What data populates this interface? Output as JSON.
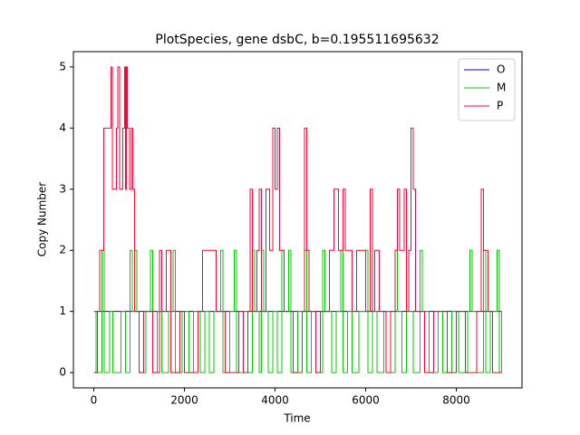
{
  "chart_data": {
    "type": "line",
    "drawstyle": "steps-post",
    "title": "PlotSpecies, gene dsbC, b=0.195511695632",
    "x_label": "Time",
    "y_label": "Copy Number",
    "xlim": [
      -450,
      9450
    ],
    "ylim": [
      -0.25,
      5.25
    ],
    "xticks": [
      0,
      2000,
      4000,
      6000,
      8000
    ],
    "yticks": [
      0,
      1,
      2,
      3,
      4,
      5
    ],
    "legend": "upper right",
    "series": [
      {
        "name": "O",
        "color": "#0000ff",
        "x": [
          0,
          9000
        ],
        "values": [
          1,
          1
        ]
      },
      {
        "name": "M",
        "color": "#00cc00",
        "x": [
          0,
          50,
          180,
          230,
          350,
          420,
          600,
          700,
          800,
          850,
          900,
          950,
          1000,
          1150,
          1250,
          1300,
          1400,
          1500,
          1650,
          1750,
          1800,
          1950,
          2100,
          2200,
          2350,
          2450,
          2550,
          2650,
          2800,
          2850,
          3000,
          3100,
          3150,
          3300,
          3400,
          3500,
          3550,
          3650,
          3700,
          3750,
          3850,
          3950,
          4050,
          4150,
          4200,
          4300,
          4350,
          4500,
          4650,
          4700,
          4800,
          4900,
          5050,
          5100,
          5250,
          5350,
          5450,
          5500,
          5600,
          5700,
          5850,
          6000,
          6050,
          6150,
          6250,
          6400,
          6550,
          6650,
          6700,
          6800,
          6900,
          7050,
          7200,
          7250,
          7400,
          7600,
          7700,
          7900,
          8050,
          8250,
          8300,
          8350,
          8450,
          8600,
          8650,
          8750,
          8900,
          8950,
          9000
        ],
        "values": [
          1,
          0,
          2,
          0,
          1,
          0,
          1,
          0,
          2,
          1,
          2,
          1,
          0,
          1,
          2,
          0,
          1,
          0,
          1,
          2,
          0,
          1,
          0,
          1,
          0,
          1,
          0,
          1,
          2,
          0,
          1,
          2,
          0,
          1,
          0,
          2,
          1,
          0,
          2,
          1,
          0,
          1,
          0,
          2,
          1,
          2,
          0,
          1,
          2,
          0,
          1,
          0,
          2,
          1,
          0,
          1,
          2,
          0,
          1,
          0,
          1,
          2,
          0,
          1,
          0,
          1,
          0,
          2,
          1,
          0,
          1,
          0,
          2,
          1,
          0,
          1,
          0,
          1,
          0,
          1,
          2,
          1,
          0,
          2,
          0,
          1,
          2,
          0,
          1
        ]
      },
      {
        "name": "P",
        "color": "#ff0033",
        "x": [
          0,
          80,
          130,
          220,
          380,
          410,
          500,
          530,
          570,
          640,
          680,
          700,
          720,
          740,
          790,
          830,
          860,
          900,
          1000,
          1100,
          1300,
          1450,
          1500,
          1600,
          1700,
          1900,
          2000,
          2300,
          2400,
          2700,
          2900,
          3200,
          3300,
          3400,
          3450,
          3500,
          3600,
          3650,
          3700,
          3800,
          3880,
          3950,
          4000,
          4050,
          4100,
          4200,
          4400,
          4600,
          4650,
          4700,
          4750,
          4900,
          5000,
          5200,
          5300,
          5400,
          5500,
          5550,
          5700,
          5800,
          6000,
          6100,
          6150,
          6200,
          6300,
          6450,
          6550,
          6650,
          6700,
          6750,
          6850,
          6900,
          6950,
          7000,
          7050,
          7100,
          7300,
          7500,
          7800,
          8000,
          8200,
          8450,
          8550,
          8600,
          8700,
          8800,
          9000
        ],
        "values": [
          0,
          1,
          2,
          4,
          5,
          3,
          4,
          5,
          3,
          4,
          5,
          3,
          5,
          4,
          3,
          4,
          3,
          1,
          0,
          1,
          0,
          2,
          1,
          2,
          0,
          1,
          0,
          1,
          2,
          1,
          0,
          1,
          0,
          1,
          3,
          1,
          2,
          3,
          1,
          3,
          2,
          4,
          3,
          4,
          2,
          1,
          0,
          1,
          4,
          2,
          1,
          0,
          1,
          2,
          3,
          2,
          3,
          2,
          1,
          2,
          1,
          3,
          1,
          2,
          1,
          0,
          1,
          2,
          3,
          2,
          3,
          1,
          2,
          4,
          3,
          1,
          0,
          1,
          0,
          1,
          0,
          1,
          3,
          2,
          1,
          0,
          0
        ]
      }
    ]
  }
}
